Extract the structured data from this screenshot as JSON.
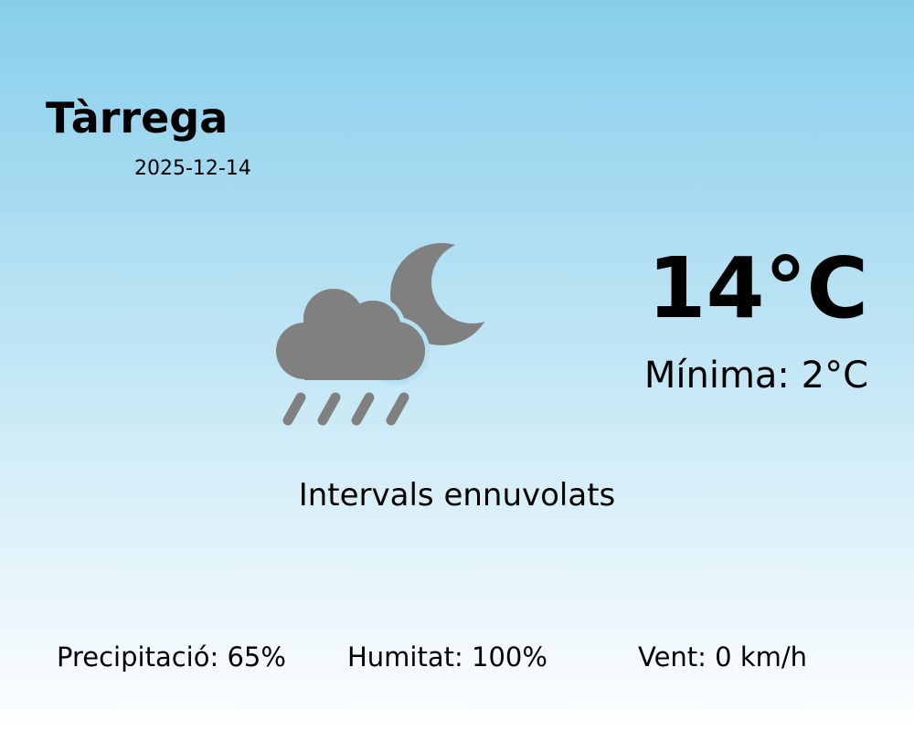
{
  "location": {
    "city": "Tàrrega",
    "date": "2025-12-14"
  },
  "current": {
    "temperature": "14°C",
    "minimum": "Mínima: 2°C",
    "description": "Intervals ennuvolats",
    "icon": "cloud-rain-moon-icon",
    "icon_color": "#808080"
  },
  "stats": {
    "precipitation": "Precipitació: 65%",
    "humidity": "Humitat: 100%",
    "wind": "Vent: 0 km/h"
  },
  "colors": {
    "background_top": "#87ceeb",
    "background_bottom": "#ffffff"
  }
}
